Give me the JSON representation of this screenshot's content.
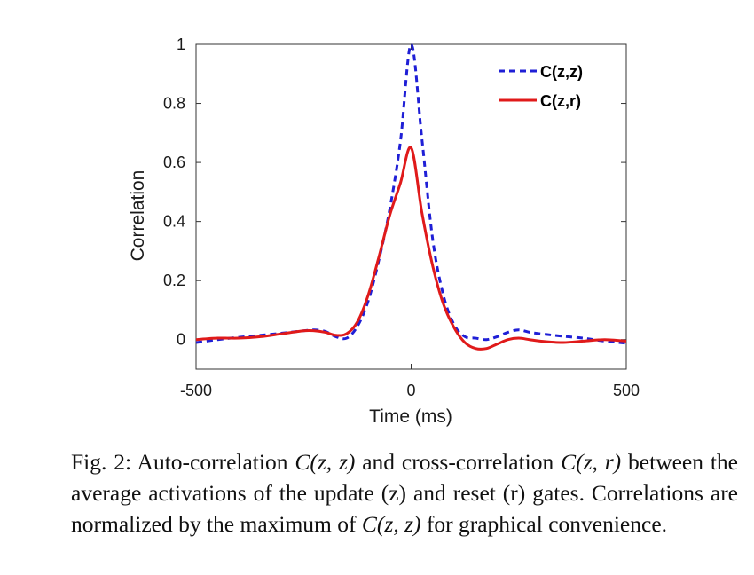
{
  "chart_data": {
    "type": "line",
    "xlabel": "Time (ms)",
    "ylabel": "Correlation",
    "xlim": [
      -500,
      500
    ],
    "ylim": [
      -0.1,
      1.0
    ],
    "xticks": [
      "-500",
      "0",
      "500"
    ],
    "yticks": [
      "0",
      "0.2",
      "0.4",
      "0.6",
      "0.8",
      "1"
    ],
    "grid": false,
    "legend_position": "top-right",
    "series": [
      {
        "name": "C(z,z)",
        "color": "#1f1fd6",
        "style": "dashed",
        "x": [
          -500,
          -450,
          -400,
          -350,
          -300,
          -250,
          -225,
          -200,
          -175,
          -150,
          -125,
          -100,
          -75,
          -50,
          -25,
          0,
          25,
          50,
          75,
          100,
          125,
          150,
          175,
          200,
          225,
          250,
          275,
          300,
          350,
          400,
          450,
          500
        ],
        "y": [
          -0.01,
          0.0,
          0.008,
          0.015,
          0.022,
          0.03,
          0.033,
          0.028,
          0.01,
          0.005,
          0.045,
          0.13,
          0.27,
          0.44,
          0.67,
          1.0,
          0.68,
          0.34,
          0.15,
          0.05,
          0.01,
          0.005,
          0.0,
          0.01,
          0.025,
          0.033,
          0.025,
          0.02,
          0.012,
          0.005,
          -0.005,
          -0.012
        ]
      },
      {
        "name": "C(z,r)",
        "color": "#e01a1a",
        "style": "solid",
        "x": [
          -500,
          -450,
          -400,
          -350,
          -300,
          -250,
          -225,
          -200,
          -175,
          -150,
          -125,
          -100,
          -75,
          -50,
          -25,
          0,
          25,
          50,
          75,
          100,
          125,
          150,
          175,
          200,
          225,
          250,
          275,
          300,
          350,
          400,
          450,
          500
        ],
        "y": [
          0.0,
          0.005,
          0.005,
          0.01,
          0.02,
          0.03,
          0.03,
          0.025,
          0.015,
          0.02,
          0.06,
          0.15,
          0.28,
          0.42,
          0.53,
          0.65,
          0.43,
          0.25,
          0.12,
          0.04,
          -0.01,
          -0.03,
          -0.03,
          -0.015,
          0.0,
          0.005,
          0.0,
          -0.005,
          -0.01,
          -0.005,
          0.0,
          -0.005
        ]
      }
    ]
  },
  "caption": {
    "prefix": "Fig. 2: Auto-correlation ",
    "czz_1": "C(z, z)",
    "mid_1": " and cross-correlation ",
    "czr": "C(z, r)",
    "mid_2": " between the average activations of the update (z) and reset (r) gates. Correlations are normalized by the maximum of ",
    "czz_2": "C(z, z)",
    "suffix": " for graphical convenience."
  }
}
